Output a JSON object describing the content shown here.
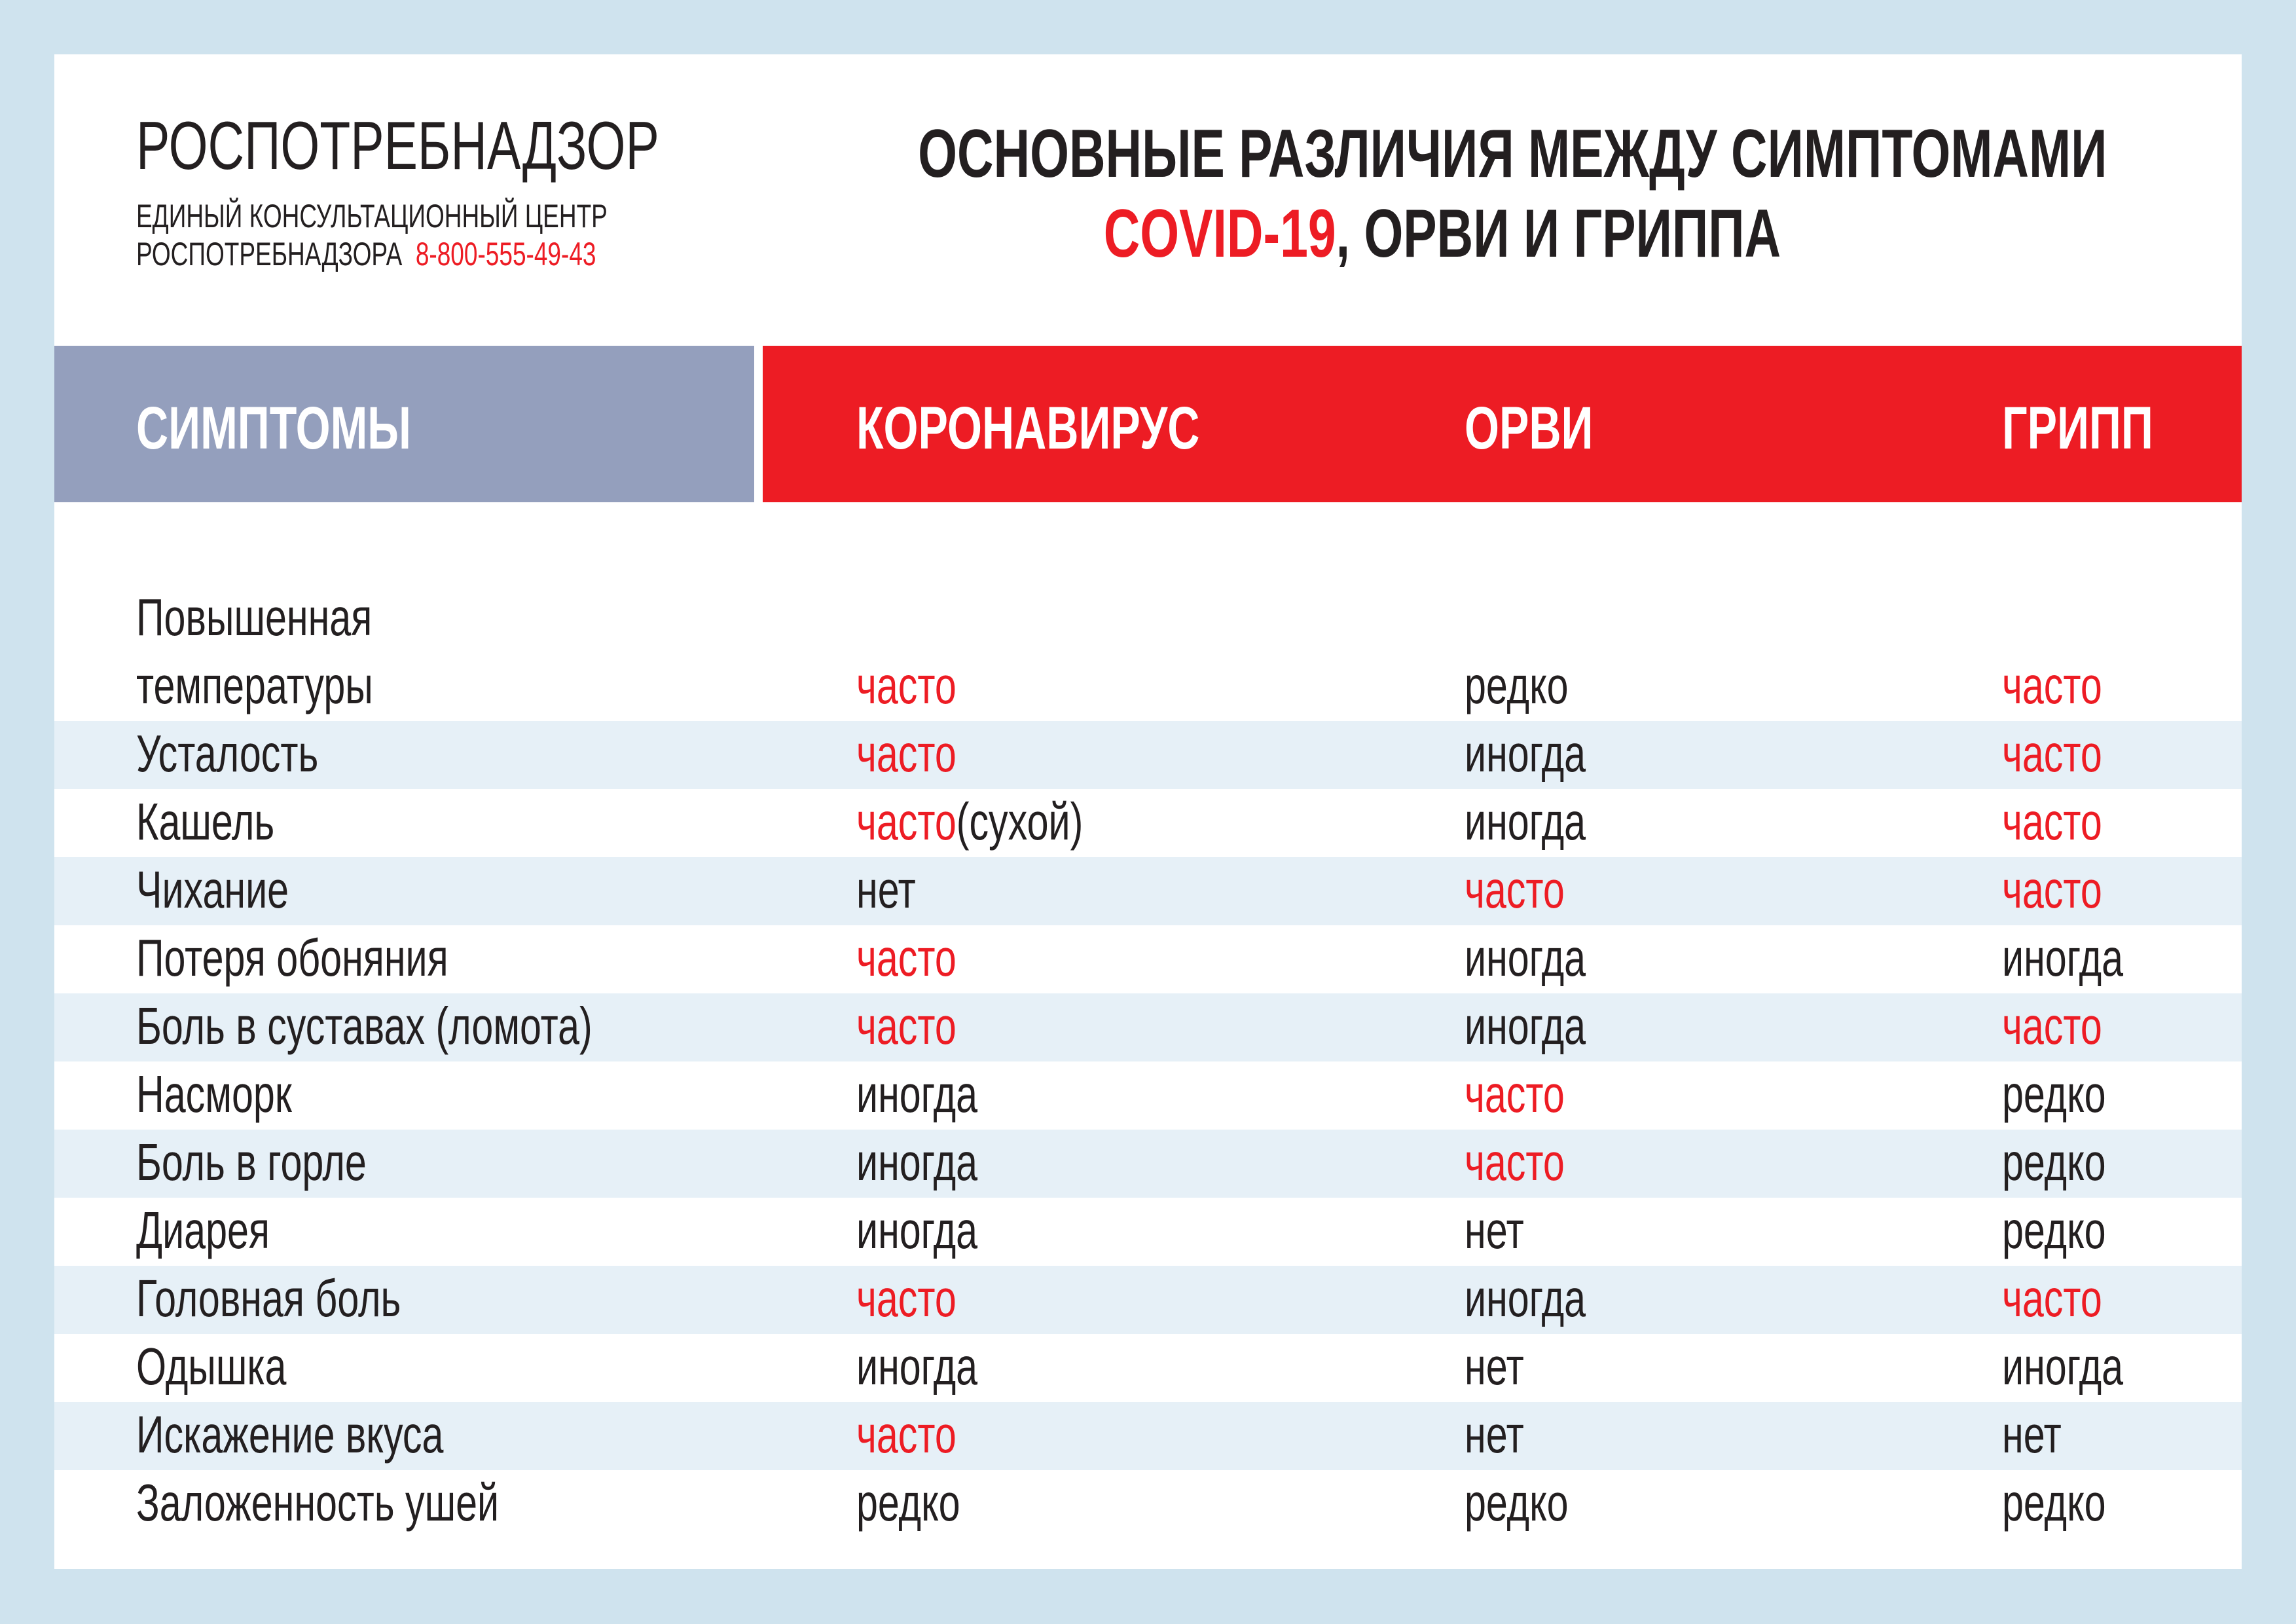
{
  "colors": {
    "background": "#cfe3ee",
    "header_grey": "#949fbd",
    "accent_red": "#ed1c24",
    "stripe": "#e6f0f7"
  },
  "org": {
    "name": "РОСПОТРЕБНАДЗОР",
    "line1": "ЕДИНЫЙ КОНСУЛЬТАЦИОННЫЙ ЦЕНТР",
    "line2": "РОСПОТРЕБНАДЗОРА",
    "phone": "8-800-555-49-43"
  },
  "title": {
    "line1": "ОСНОВНЫЕ РАЗЛИЧИЯ МЕЖДУ СИМПТОМАМИ",
    "line2_red": "COVID-19",
    "line2_rest": ", ОРВИ И ГРИППА"
  },
  "table": {
    "headers": [
      "СИМПТОМЫ",
      "КОРОНАВИРУС",
      "ОРВИ",
      "ГРИПП"
    ],
    "first_symptom_line1": "Повышенная",
    "rows": [
      {
        "symptom": "температуры",
        "covid": "часто",
        "orvi": "редко",
        "flu": "часто"
      },
      {
        "symptom": "Усталость",
        "covid": "часто",
        "orvi": "иногда",
        "flu": "часто"
      },
      {
        "symptom": "Кашель",
        "covid": "часто",
        "covid_note": "(сухой)",
        "orvi": "иногда",
        "flu": "часто"
      },
      {
        "symptom": "Чихание",
        "covid": "нет",
        "orvi": "часто",
        "flu": "часто"
      },
      {
        "symptom": "Потеря обоняния",
        "covid": "часто",
        "orvi": "иногда",
        "flu": "иногда"
      },
      {
        "symptom": "Боль в суставах (ломота)",
        "covid": "часто",
        "orvi": "иногда",
        "flu": "часто"
      },
      {
        "symptom": "Насморк",
        "covid": "иногда",
        "orvi": "часто",
        "flu": "редко"
      },
      {
        "symptom": "Боль в горле",
        "covid": "иногда",
        "orvi": "часто",
        "flu": "редко"
      },
      {
        "symptom": "Диарея",
        "covid": "иногда",
        "orvi": "нет",
        "flu": "редко"
      },
      {
        "symptom": "Головная боль",
        "covid": "часто",
        "orvi": "иногда",
        "flu": "часто"
      },
      {
        "symptom": "Одышка",
        "covid": "иногда",
        "orvi": "нет",
        "flu": "иногда"
      },
      {
        "symptom": "Искажение вкуса",
        "covid": "часто",
        "orvi": "нет",
        "flu": "нет"
      },
      {
        "symptom": "Заложенность ушей",
        "covid": "редко",
        "orvi": "редко",
        "flu": "редко"
      }
    ]
  }
}
